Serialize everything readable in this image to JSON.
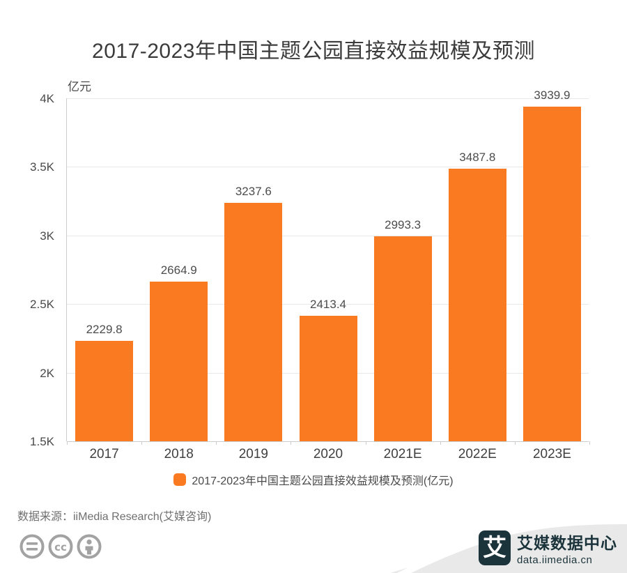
{
  "title": "2017-2023年中国主题公园直接效益规模及预测",
  "chart_data": {
    "type": "bar",
    "title": "2017-2023年中国主题公园直接效益规模及预测",
    "unit_label": "亿元",
    "categories": [
      "2017",
      "2018",
      "2019",
      "2020",
      "2021E",
      "2022E",
      "2023E"
    ],
    "values": [
      2229.8,
      2664.9,
      3237.6,
      2413.4,
      2993.3,
      3487.8,
      3939.9
    ],
    "ylim": [
      1500,
      4000
    ],
    "y_ticks": [
      "1.5K",
      "2K",
      "2.5K",
      "3K",
      "3.5K",
      "4K"
    ],
    "y_tick_values": [
      1500,
      2000,
      2500,
      3000,
      3500,
      4000
    ],
    "grid": true,
    "legend_position": "bottom",
    "bar_color": "#fa7a21"
  },
  "legend": {
    "label": "2017-2023年中国主题公园直接效益规模及预测(亿元)",
    "marker_color": "#fa7a21"
  },
  "source": {
    "text": "数据来源：iiMedia Research(艾媒咨询)"
  },
  "footer": {
    "icons": [
      "equals-icon",
      "cc-icon",
      "person-icon"
    ],
    "brand": {
      "logo_char": "艾",
      "name": "艾媒数据中心",
      "url": "data.iimedia.cn"
    }
  },
  "colors": {
    "bar": "#fa7a21",
    "brand_dark": "#1b333a",
    "ribbon_gray": "#e9e9e9",
    "icon_gray": "#a2a2a2",
    "gridline": "#e8e8e8",
    "axis_line": "#cccccc"
  }
}
